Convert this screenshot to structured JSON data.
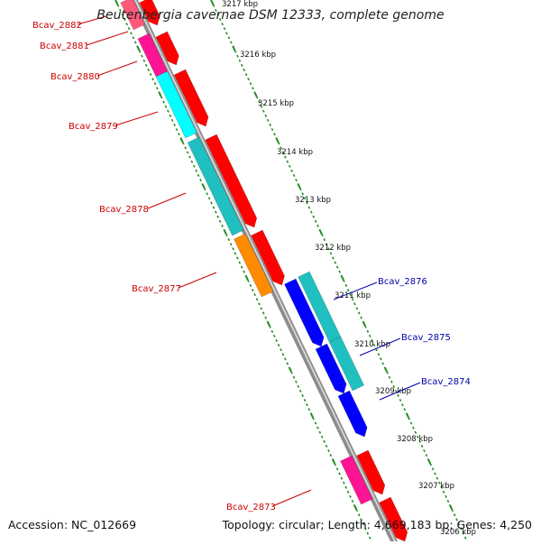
{
  "title": "Beutenbergia cavernae DSM 12333, complete genome",
  "footer": {
    "accession": "Accession: NC_012669",
    "topology": "Topology: circular; Length: 4,669,183 bp; Genes: 4,250"
  },
  "colors": {
    "forward_strand_arrows": "#ff0000",
    "reverse_strand_arrows": "#0000ff",
    "label_red": "#cc0000",
    "label_blue": "#0000aa",
    "tick": "#228B22",
    "backbone": "#888888"
  },
  "ruler_labels": [
    "3217 kbp",
    "3216 kbp",
    "3215 kbp",
    "3214 kbp",
    "3213 kbp",
    "3212 kbp",
    "3211 kbp",
    "3210 kbp",
    "3209 kbp",
    "3208 kbp",
    "3207 kbp",
    "3206 kbp"
  ],
  "genes": [
    {
      "name": "Bcav_2882",
      "strand": "forward",
      "cog_color": "#ff3377"
    },
    {
      "name": "Bcav_2881",
      "strand": "forward",
      "cog_color": "#ff1493"
    },
    {
      "name": "Bcav_2880",
      "strand": "forward",
      "cog_color": "#00ffff"
    },
    {
      "name": "Bcav_2879",
      "strand": "forward",
      "cog_color": "#00ffff"
    },
    {
      "name": "Bcav_2878",
      "strand": "forward",
      "cog_color": "#20c0c0"
    },
    {
      "name": "Bcav_2877",
      "strand": "forward",
      "cog_color": "#ff8c00"
    },
    {
      "name": "Bcav_2876",
      "strand": "reverse",
      "cog_color": "#20c0c0"
    },
    {
      "name": "Bcav_2875",
      "strand": "reverse",
      "cog_color": "#20c0c0"
    },
    {
      "name": "Bcav_2874",
      "strand": "reverse",
      "cog_color": "#20c0c0"
    },
    {
      "name": "Bcav_2873",
      "strand": "forward",
      "cog_color": "#ff1493"
    }
  ]
}
